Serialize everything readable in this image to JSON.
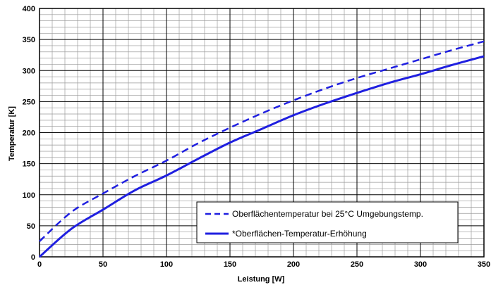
{
  "chart_data": {
    "type": "line",
    "title": "",
    "xlabel": "Leistung  [W]",
    "ylabel": "Temperatur  [K]",
    "xlim": [
      0,
      350
    ],
    "ylim": [
      0,
      400
    ],
    "x_ticks": [
      0,
      50,
      100,
      150,
      200,
      250,
      300,
      350
    ],
    "y_ticks": [
      0,
      50,
      100,
      150,
      200,
      250,
      300,
      350,
      400
    ],
    "x_tick_labels": [
      "0",
      "50",
      "100",
      "150",
      "200",
      "250",
      "300",
      "350"
    ],
    "y_tick_labels": [
      "0",
      "50",
      "100",
      "150",
      "200",
      "250",
      "300",
      "350",
      "400"
    ],
    "grid": true,
    "legend_position": "bottom-right",
    "series": [
      {
        "name": "Oberflächentemperatur bei 25°C Umgebungstemp.",
        "color": "#1f1fe0",
        "style": "dashed",
        "x": [
          0,
          25,
          50,
          75,
          100,
          125,
          150,
          175,
          200,
          225,
          250,
          275,
          300,
          325,
          350
        ],
        "y": [
          25,
          72,
          102,
          130,
          155,
          183,
          208,
          231,
          252,
          271,
          288,
          303,
          318,
          333,
          347
        ]
      },
      {
        "name": "*Oberflächen-Temperatur-Erhöhung",
        "color": "#1f1fe0",
        "style": "solid",
        "x": [
          0,
          25,
          50,
          75,
          100,
          125,
          150,
          175,
          200,
          225,
          250,
          275,
          300,
          325,
          350
        ],
        "y": [
          0,
          45,
          76,
          107,
          131,
          158,
          184,
          206,
          228,
          247,
          264,
          280,
          294,
          309,
          323
        ]
      }
    ]
  }
}
